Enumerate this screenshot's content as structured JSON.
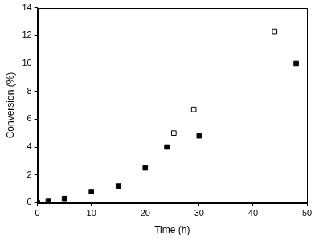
{
  "chart_data": {
    "type": "scatter",
    "x_label": "Time (h)",
    "y_label": "Conversion (%)",
    "series": [
      {
        "color": "#000000",
        "marker": "square",
        "x": [
          0,
          2,
          5,
          10,
          15,
          20,
          24,
          30,
          48
        ],
        "values": [
          0,
          0.1,
          0.3,
          0.8,
          1.2,
          2.5,
          4.0,
          4.8,
          10.0
        ]
      },
      {
        "color": "#000000",
        "marker": "square_open",
        "x": [
          25.3,
          29,
          44
        ],
        "values": [
          5.0,
          6.7,
          12.3
        ]
      }
    ],
    "xlim": [
      0,
      50
    ],
    "xticks": [
      0,
      10,
      20,
      30,
      40,
      50
    ],
    "ylim": [
      0,
      14
    ],
    "yticks": [
      0,
      2,
      4,
      6,
      8,
      10,
      12,
      14
    ],
    "grid": false
  }
}
